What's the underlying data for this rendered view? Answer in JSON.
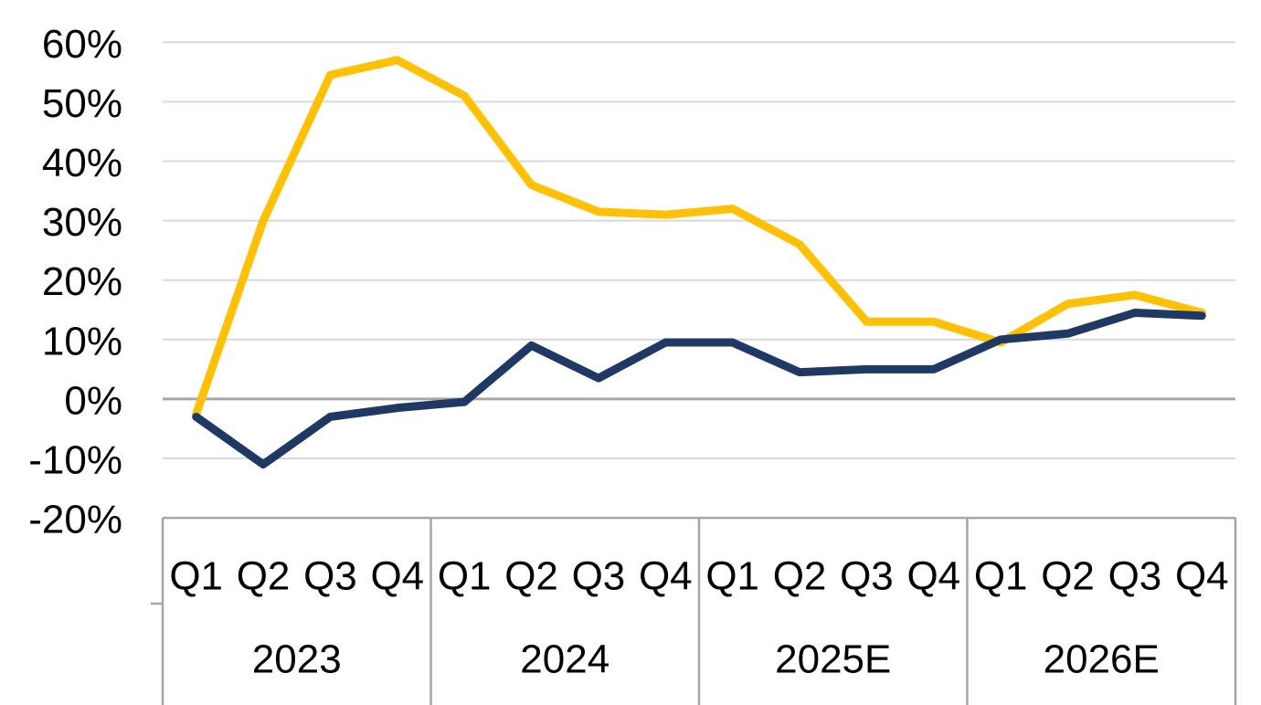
{
  "chart_data": {
    "type": "line",
    "title": "",
    "xlabel": "",
    "ylabel": "",
    "ylim": [
      -20,
      60
    ],
    "grid": true,
    "legend": "none",
    "y_ticks": [
      {
        "label": "60%",
        "value": 60
      },
      {
        "label": "50%",
        "value": 50
      },
      {
        "label": "40%",
        "value": 40
      },
      {
        "label": "30%",
        "value": 30
      },
      {
        "label": "20%",
        "value": 20
      },
      {
        "label": "10%",
        "value": 10
      },
      {
        "label": "0%",
        "value": 0
      },
      {
        "label": "-10%",
        "value": -10
      },
      {
        "label": "-20%",
        "value": -20
      }
    ],
    "x_groups": [
      {
        "label": "2023",
        "quarters": [
          "Q1",
          "Q2",
          "Q3",
          "Q4"
        ]
      },
      {
        "label": "2024",
        "quarters": [
          "Q1",
          "Q2",
          "Q3",
          "Q4"
        ]
      },
      {
        "label": "2025E",
        "quarters": [
          "Q1",
          "Q2",
          "Q3",
          "Q4"
        ]
      },
      {
        "label": "2026E",
        "quarters": [
          "Q1",
          "Q2",
          "Q3",
          "Q4"
        ]
      }
    ],
    "series": [
      {
        "name": "gold",
        "color": "#FFC008",
        "values": [
          -2.5,
          30,
          54.5,
          57,
          51,
          36,
          31.5,
          31,
          32,
          26,
          13,
          13,
          9.5,
          16,
          17.5,
          14.5
        ]
      },
      {
        "name": "navy",
        "color": "#1F3864",
        "values": [
          -3,
          -11,
          -3,
          -1.5,
          -0.5,
          9,
          3.5,
          9.5,
          9.5,
          4.5,
          5,
          5,
          10,
          11,
          14.5,
          14
        ]
      }
    ],
    "style": {
      "gridline_color": "#d9d9d9",
      "zero_line_color": "#a6a6a6",
      "border_color": "#a6a6a6",
      "text_color": "#000000",
      "background_color": "#ffffff"
    }
  }
}
